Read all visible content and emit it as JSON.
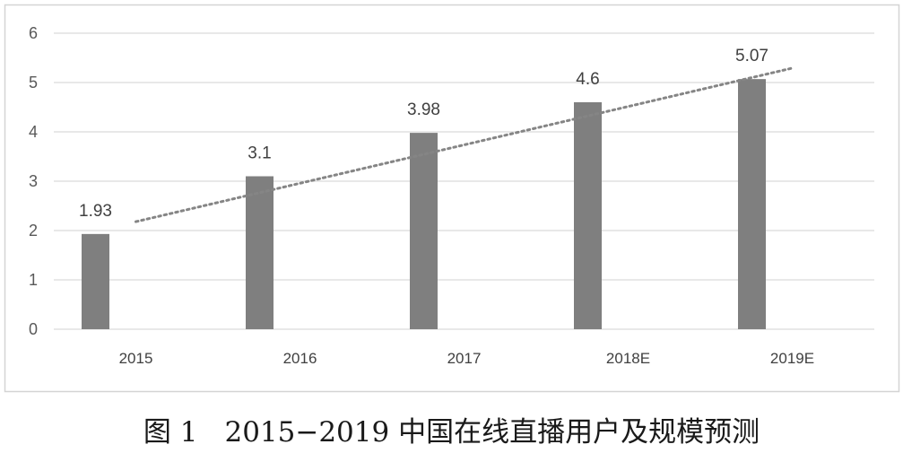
{
  "figure": {
    "label": "图 1",
    "caption": "2015−2019 中国在线直播用户及规模预测"
  },
  "chart_data": {
    "type": "bar",
    "categories": [
      "2015",
      "2016",
      "2017",
      "2018E",
      "2019E"
    ],
    "values": [
      1.93,
      3.1,
      3.98,
      4.6,
      5.07
    ],
    "data_labels": true,
    "yticks": [
      0,
      1,
      2,
      3,
      4,
      5,
      6
    ],
    "ylim": [
      0,
      6
    ],
    "grid": true,
    "legend": "none",
    "trendline": {
      "type": "linear",
      "style": "dotted"
    },
    "colors": {
      "bar": "#7f7f7f",
      "trendline": "#858585",
      "grid": "#d9d9d9",
      "frame": "#d4d4d4"
    }
  }
}
